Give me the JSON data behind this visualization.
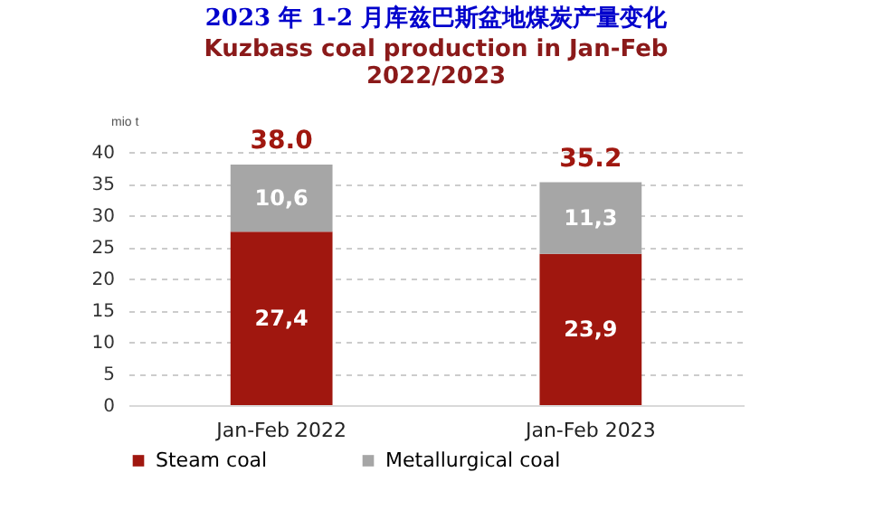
{
  "chart_data": {
    "type": "bar",
    "title": "2023 年 1-2 月库兹巴斯盆地煤炭产量变化",
    "subtitle": "Kuzbass coal production  in Jan-Feb\n2022/2023",
    "ylabel": "mio t",
    "categories": [
      "Jan-Feb 2022",
      "Jan-Feb 2023"
    ],
    "stacked": true,
    "series": [
      {
        "name": "Steam coal",
        "color": "#a0170f",
        "values": [
          27.4,
          23.9
        ],
        "value_labels": [
          "27,4",
          "23,9"
        ]
      },
      {
        "name": "Metallurgical coal",
        "color": "#a6a6a6",
        "values": [
          10.6,
          11.3
        ],
        "value_labels": [
          "10,6",
          "11,3"
        ]
      }
    ],
    "totals": [
      "38.0",
      "35.2"
    ],
    "ylim": [
      0,
      40
    ],
    "yticks": [
      0,
      5,
      10,
      15,
      20,
      25,
      30,
      35,
      40
    ],
    "grid": "y",
    "legend": "bottom"
  }
}
